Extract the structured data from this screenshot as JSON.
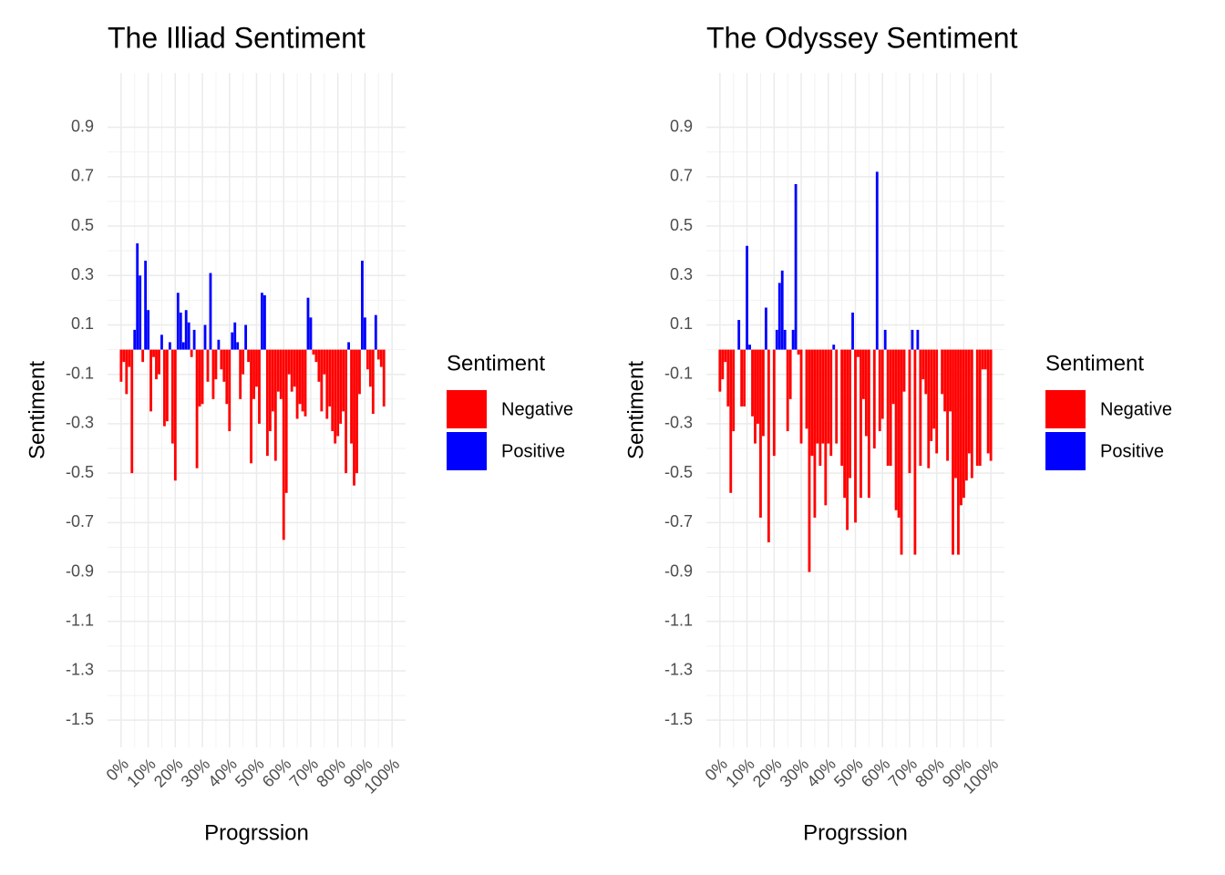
{
  "chart_data": [
    {
      "type": "bar",
      "title": "The Illiad Sentiment",
      "x_label": "Progrssion",
      "y_label": "Sentiment",
      "x": [
        0,
        1,
        2,
        3,
        4,
        5,
        6,
        7,
        8,
        9,
        10,
        11,
        12,
        13,
        14,
        15,
        16,
        17,
        18,
        19,
        20,
        21,
        22,
        23,
        24,
        25,
        26,
        27,
        28,
        29,
        30,
        31,
        32,
        33,
        34,
        35,
        36,
        37,
        38,
        39,
        40,
        41,
        42,
        43,
        44,
        45,
        46,
        47,
        48,
        49,
        50,
        51,
        52,
        53,
        54,
        55,
        56,
        57,
        58,
        59,
        60,
        61,
        62,
        63,
        64,
        65,
        66,
        67,
        68,
        69,
        70,
        71,
        72,
        73,
        74,
        75,
        76,
        77,
        78,
        79,
        80,
        81,
        82,
        83,
        84,
        85,
        86,
        87,
        88,
        89,
        90,
        91,
        92,
        93,
        94,
        95,
        96,
        97
      ],
      "values": [
        -0.13,
        -0.05,
        -0.18,
        -0.07,
        -0.5,
        0.08,
        0.43,
        0.3,
        -0.05,
        0.36,
        0.16,
        -0.25,
        -0.03,
        -0.12,
        -0.1,
        0.06,
        -0.31,
        -0.29,
        0.03,
        -0.38,
        -0.53,
        0.23,
        0.15,
        0.03,
        0.16,
        0.11,
        -0.03,
        0.08,
        -0.48,
        -0.23,
        -0.22,
        0.1,
        -0.13,
        0.31,
        -0.2,
        -0.12,
        0.04,
        -0.08,
        -0.13,
        -0.22,
        -0.33,
        0.07,
        0.11,
        0.03,
        -0.2,
        -0.1,
        0.1,
        -0.05,
        -0.46,
        -0.2,
        -0.15,
        -0.3,
        0.23,
        0.22,
        -0.43,
        -0.33,
        -0.25,
        -0.45,
        -0.17,
        -0.2,
        -0.77,
        -0.58,
        -0.1,
        -0.17,
        -0.15,
        -0.28,
        -0.22,
        -0.25,
        -0.27,
        0.21,
        0.13,
        -0.02,
        -0.05,
        -0.13,
        -0.25,
        -0.1,
        -0.28,
        -0.23,
        -0.33,
        -0.38,
        -0.35,
        -0.3,
        -0.25,
        -0.5,
        0.03,
        -0.38,
        -0.55,
        -0.5,
        -0.18,
        0.36,
        0.13,
        -0.08,
        -0.15,
        -0.26,
        0.14,
        -0.04,
        -0.07,
        -0.23
      ],
      "xlim": [
        -5,
        105
      ],
      "ylim": [
        -1.61,
        1.12
      ],
      "xticks": [
        {
          "value": 0,
          "label": "0%"
        },
        {
          "value": 10,
          "label": "10%"
        },
        {
          "value": 20,
          "label": "20%"
        },
        {
          "value": 30,
          "label": "30%"
        },
        {
          "value": 40,
          "label": "40%"
        },
        {
          "value": 50,
          "label": "50%"
        },
        {
          "value": 60,
          "label": "60%"
        },
        {
          "value": 70,
          "label": "70%"
        },
        {
          "value": 80,
          "label": "80%"
        },
        {
          "value": 90,
          "label": "90%"
        },
        {
          "value": 100,
          "label": "100%"
        }
      ],
      "yticks": [
        0.9,
        0.7,
        0.5,
        0.3,
        0.1,
        -0.1,
        -0.3,
        -0.5,
        -0.7,
        -0.9,
        -1.1,
        -1.3,
        -1.5
      ],
      "grid": true,
      "legend": {
        "title": "Sentiment",
        "entries": [
          {
            "name": "Negative",
            "color": "#ff0000"
          },
          {
            "name": "Positive",
            "color": "#0000ff"
          }
        ]
      }
    },
    {
      "type": "bar",
      "title": "The Odyssey Sentiment",
      "x_label": "Progrssion",
      "y_label": "Sentiment",
      "x": [
        0,
        1,
        2,
        3,
        4,
        5,
        7,
        8,
        9,
        10,
        11,
        12,
        13,
        14,
        15,
        16,
        17,
        18,
        20,
        21,
        22,
        23,
        24,
        25,
        26,
        27,
        28,
        29,
        30,
        32,
        33,
        34,
        35,
        36,
        37,
        38,
        39,
        40,
        41,
        42,
        43,
        45,
        46,
        47,
        48,
        49,
        50,
        51,
        52,
        53,
        54,
        55,
        57,
        58,
        59,
        60,
        61,
        62,
        63,
        64,
        65,
        66,
        67,
        68,
        70,
        71,
        72,
        73,
        74,
        75,
        76,
        77,
        78,
        79,
        80,
        82,
        83,
        84,
        85,
        86,
        87,
        88,
        89,
        90,
        91,
        92,
        93,
        95,
        96,
        97,
        98,
        99,
        100
      ],
      "values": [
        -0.17,
        -0.12,
        -0.05,
        -0.23,
        -0.58,
        -0.33,
        0.12,
        -0.23,
        -0.23,
        0.42,
        0.02,
        -0.27,
        -0.38,
        -0.3,
        -0.68,
        -0.35,
        0.17,
        -0.78,
        -0.43,
        0.08,
        0.27,
        0.32,
        0.08,
        -0.33,
        -0.2,
        0.08,
        0.67,
        -0.02,
        -0.38,
        -0.32,
        -0.9,
        -0.43,
        -0.68,
        -0.38,
        -0.47,
        -0.38,
        -0.63,
        -0.38,
        -0.43,
        0.02,
        -0.38,
        -0.47,
        -0.6,
        -0.73,
        -0.52,
        0.15,
        -0.7,
        -0.03,
        -0.6,
        -0.2,
        -0.35,
        -0.6,
        -0.4,
        0.72,
        -0.33,
        -0.28,
        0.08,
        -0.47,
        -0.47,
        -0.22,
        -0.65,
        -0.68,
        -0.83,
        -0.17,
        -0.5,
        0.08,
        -0.83,
        0.08,
        -0.47,
        -0.12,
        -0.18,
        -0.48,
        -0.37,
        -0.32,
        -0.42,
        -0.18,
        -0.25,
        -0.45,
        -0.25,
        -0.83,
        -0.52,
        -0.83,
        -0.63,
        -0.6,
        -0.53,
        -0.42,
        -0.52,
        -0.47,
        -0.47,
        -0.08,
        -0.08,
        -0.42,
        -0.45
      ],
      "xlim": [
        -5,
        105
      ],
      "ylim": [
        -1.61,
        1.12
      ],
      "xticks": [
        {
          "value": 0,
          "label": "0%"
        },
        {
          "value": 10,
          "label": "10%"
        },
        {
          "value": 20,
          "label": "20%"
        },
        {
          "value": 30,
          "label": "30%"
        },
        {
          "value": 40,
          "label": "40%"
        },
        {
          "value": 50,
          "label": "50%"
        },
        {
          "value": 60,
          "label": "60%"
        },
        {
          "value": 70,
          "label": "70%"
        },
        {
          "value": 80,
          "label": "80%"
        },
        {
          "value": 90,
          "label": "90%"
        },
        {
          "value": 100,
          "label": "100%"
        }
      ],
      "yticks": [
        0.9,
        0.7,
        0.5,
        0.3,
        0.1,
        -0.1,
        -0.3,
        -0.5,
        -0.7,
        -0.9,
        -1.1,
        -1.3,
        -1.5
      ],
      "grid": true,
      "legend": {
        "title": "Sentiment",
        "entries": [
          {
            "name": "Negative",
            "color": "#ff0000"
          },
          {
            "name": "Positive",
            "color": "#0000ff"
          }
        ]
      }
    }
  ]
}
